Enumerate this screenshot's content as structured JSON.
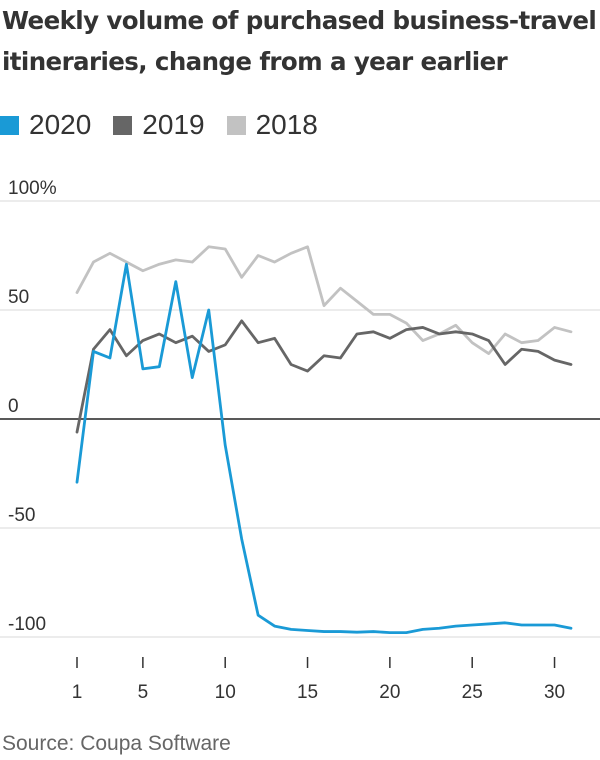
{
  "title": "Weekly volume of purchased business-travel itineraries, change from a year earlier",
  "source": "Source: Coupa Software",
  "colors": {
    "2020": "#1a9ad6",
    "2019": "#666666",
    "2018": "#c2c2c2",
    "zero_line": "#222222",
    "grid": "#d9d9d9",
    "text": "#333333"
  },
  "chart_data": {
    "type": "line",
    "title": "Weekly volume of purchased business-travel itineraries, change from a year earlier",
    "xlabel": "",
    "ylabel": "",
    "xlim": [
      1,
      31
    ],
    "ylim": [
      -100,
      100
    ],
    "y_ticks": [
      100,
      50,
      0,
      -50,
      -100
    ],
    "y_tick_labels": [
      "100%",
      "50",
      "0",
      "-50",
      "-100"
    ],
    "x_ticks": [
      1,
      5,
      10,
      15,
      20,
      25,
      30
    ],
    "x_tick_labels": [
      "1",
      "5",
      "10",
      "15",
      "20",
      "25",
      "30"
    ],
    "grid": true,
    "legend_position": "top-left",
    "x": [
      1,
      2,
      3,
      4,
      5,
      6,
      7,
      8,
      9,
      10,
      11,
      12,
      13,
      14,
      15,
      16,
      17,
      18,
      19,
      20,
      21,
      22,
      23,
      24,
      25,
      26,
      27,
      28,
      29,
      30,
      31
    ],
    "series": [
      {
        "name": "2018",
        "color": "#c2c2c2",
        "values": [
          58,
          72,
          76,
          72,
          68,
          71,
          73,
          72,
          79,
          78,
          65,
          75,
          72,
          76,
          79,
          52,
          60,
          54,
          48,
          48,
          44,
          36,
          39,
          43,
          35,
          30,
          39,
          35,
          36,
          42,
          40
        ]
      },
      {
        "name": "2019",
        "color": "#666666",
        "values": [
          -6,
          32,
          41,
          29,
          36,
          39,
          35,
          38,
          31,
          34,
          45,
          35,
          37,
          25,
          22,
          29,
          28,
          39,
          40,
          37,
          41,
          42,
          39,
          40,
          39,
          36,
          25,
          32,
          31,
          27,
          25
        ]
      },
      {
        "name": "2020",
        "color": "#1a9ad6",
        "values": [
          -29,
          31,
          28,
          71,
          23,
          24,
          63,
          19,
          50,
          -12,
          -55,
          -90,
          -95,
          -96.5,
          -97,
          -97.5,
          -97.5,
          -97.8,
          -97.5,
          -98,
          -98,
          -96.5,
          -96,
          -95,
          -94.5,
          -94,
          -93.5,
          -94.5,
          -94.5,
          -94.5,
          -96
        ]
      }
    ]
  }
}
